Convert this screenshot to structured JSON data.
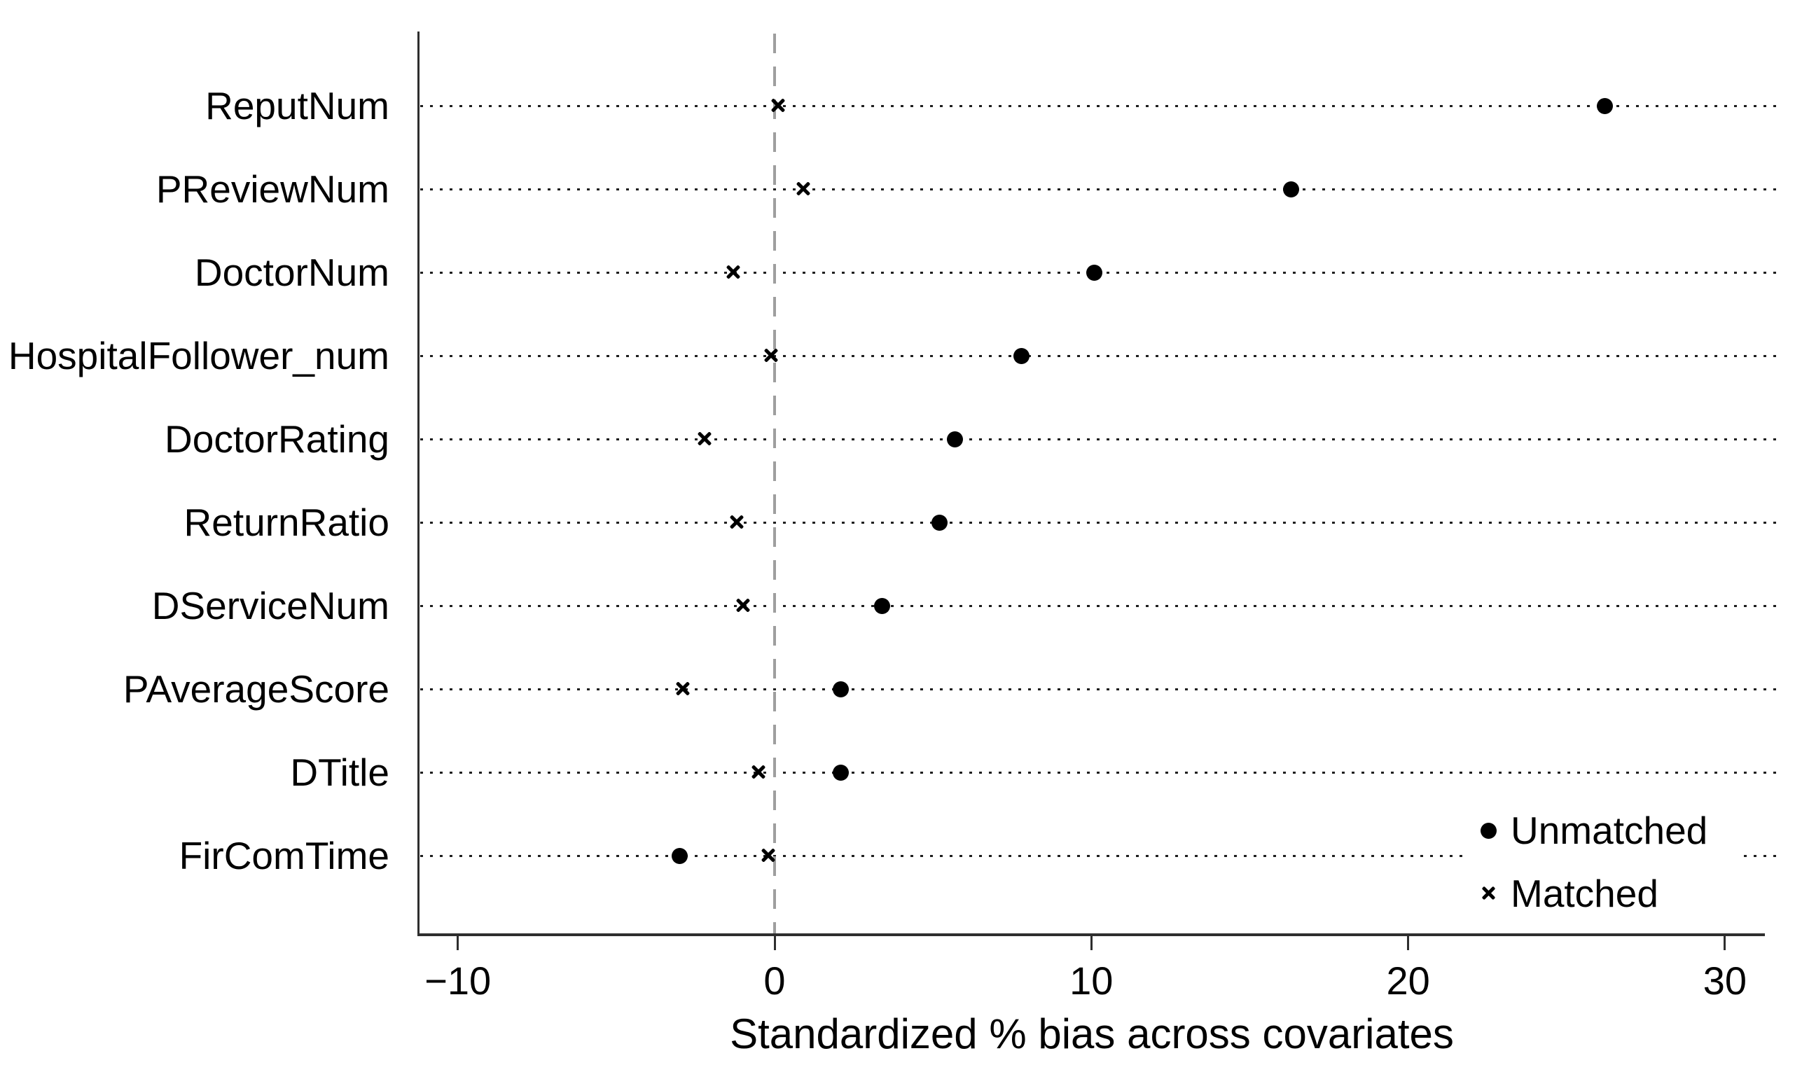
{
  "figure": {
    "background_color": "#ffffff",
    "text_color": "#000000",
    "axis_color": "#2e2e2e",
    "gridline_color": "#1f1f1f",
    "zero_line_color": "#9e9e9e",
    "marker_color": "#000000"
  },
  "chart_data": {
    "type": "scatter",
    "subtype": "horizontal-dot-plot",
    "title": "",
    "xlabel": "Standardized % bias across covariates",
    "ylabel": "",
    "xlim": [
      -11.2,
      31.3
    ],
    "x_ticks": [
      -10,
      0,
      10,
      20,
      30
    ],
    "x_tick_labels": [
      "−10",
      "0",
      "10",
      "20",
      "30"
    ],
    "grid": "dotted horizontal line per category",
    "zero_reference_line": 0,
    "categories": [
      "ReputNum",
      "PReviewNum",
      "DoctorNum",
      "HospitalFollower_num",
      "DoctorRating",
      "ReturnRatio",
      "DServiceNum",
      "PAverageScore",
      "DTitle",
      "FirComTime"
    ],
    "series": [
      {
        "name": "Unmatched",
        "marker": "filled-circle",
        "values": [
          26.2,
          16.3,
          10.1,
          7.8,
          5.7,
          5.2,
          3.4,
          2.1,
          2.1,
          -3.0
        ]
      },
      {
        "name": "Matched",
        "marker": "x",
        "values": [
          0.1,
          0.9,
          -1.3,
          -0.1,
          -2.2,
          -1.2,
          -1.0,
          -2.9,
          -0.5,
          -0.2
        ]
      }
    ],
    "legend": {
      "position": "inside-bottom-right",
      "entries": [
        "Unmatched",
        "Matched"
      ]
    }
  }
}
